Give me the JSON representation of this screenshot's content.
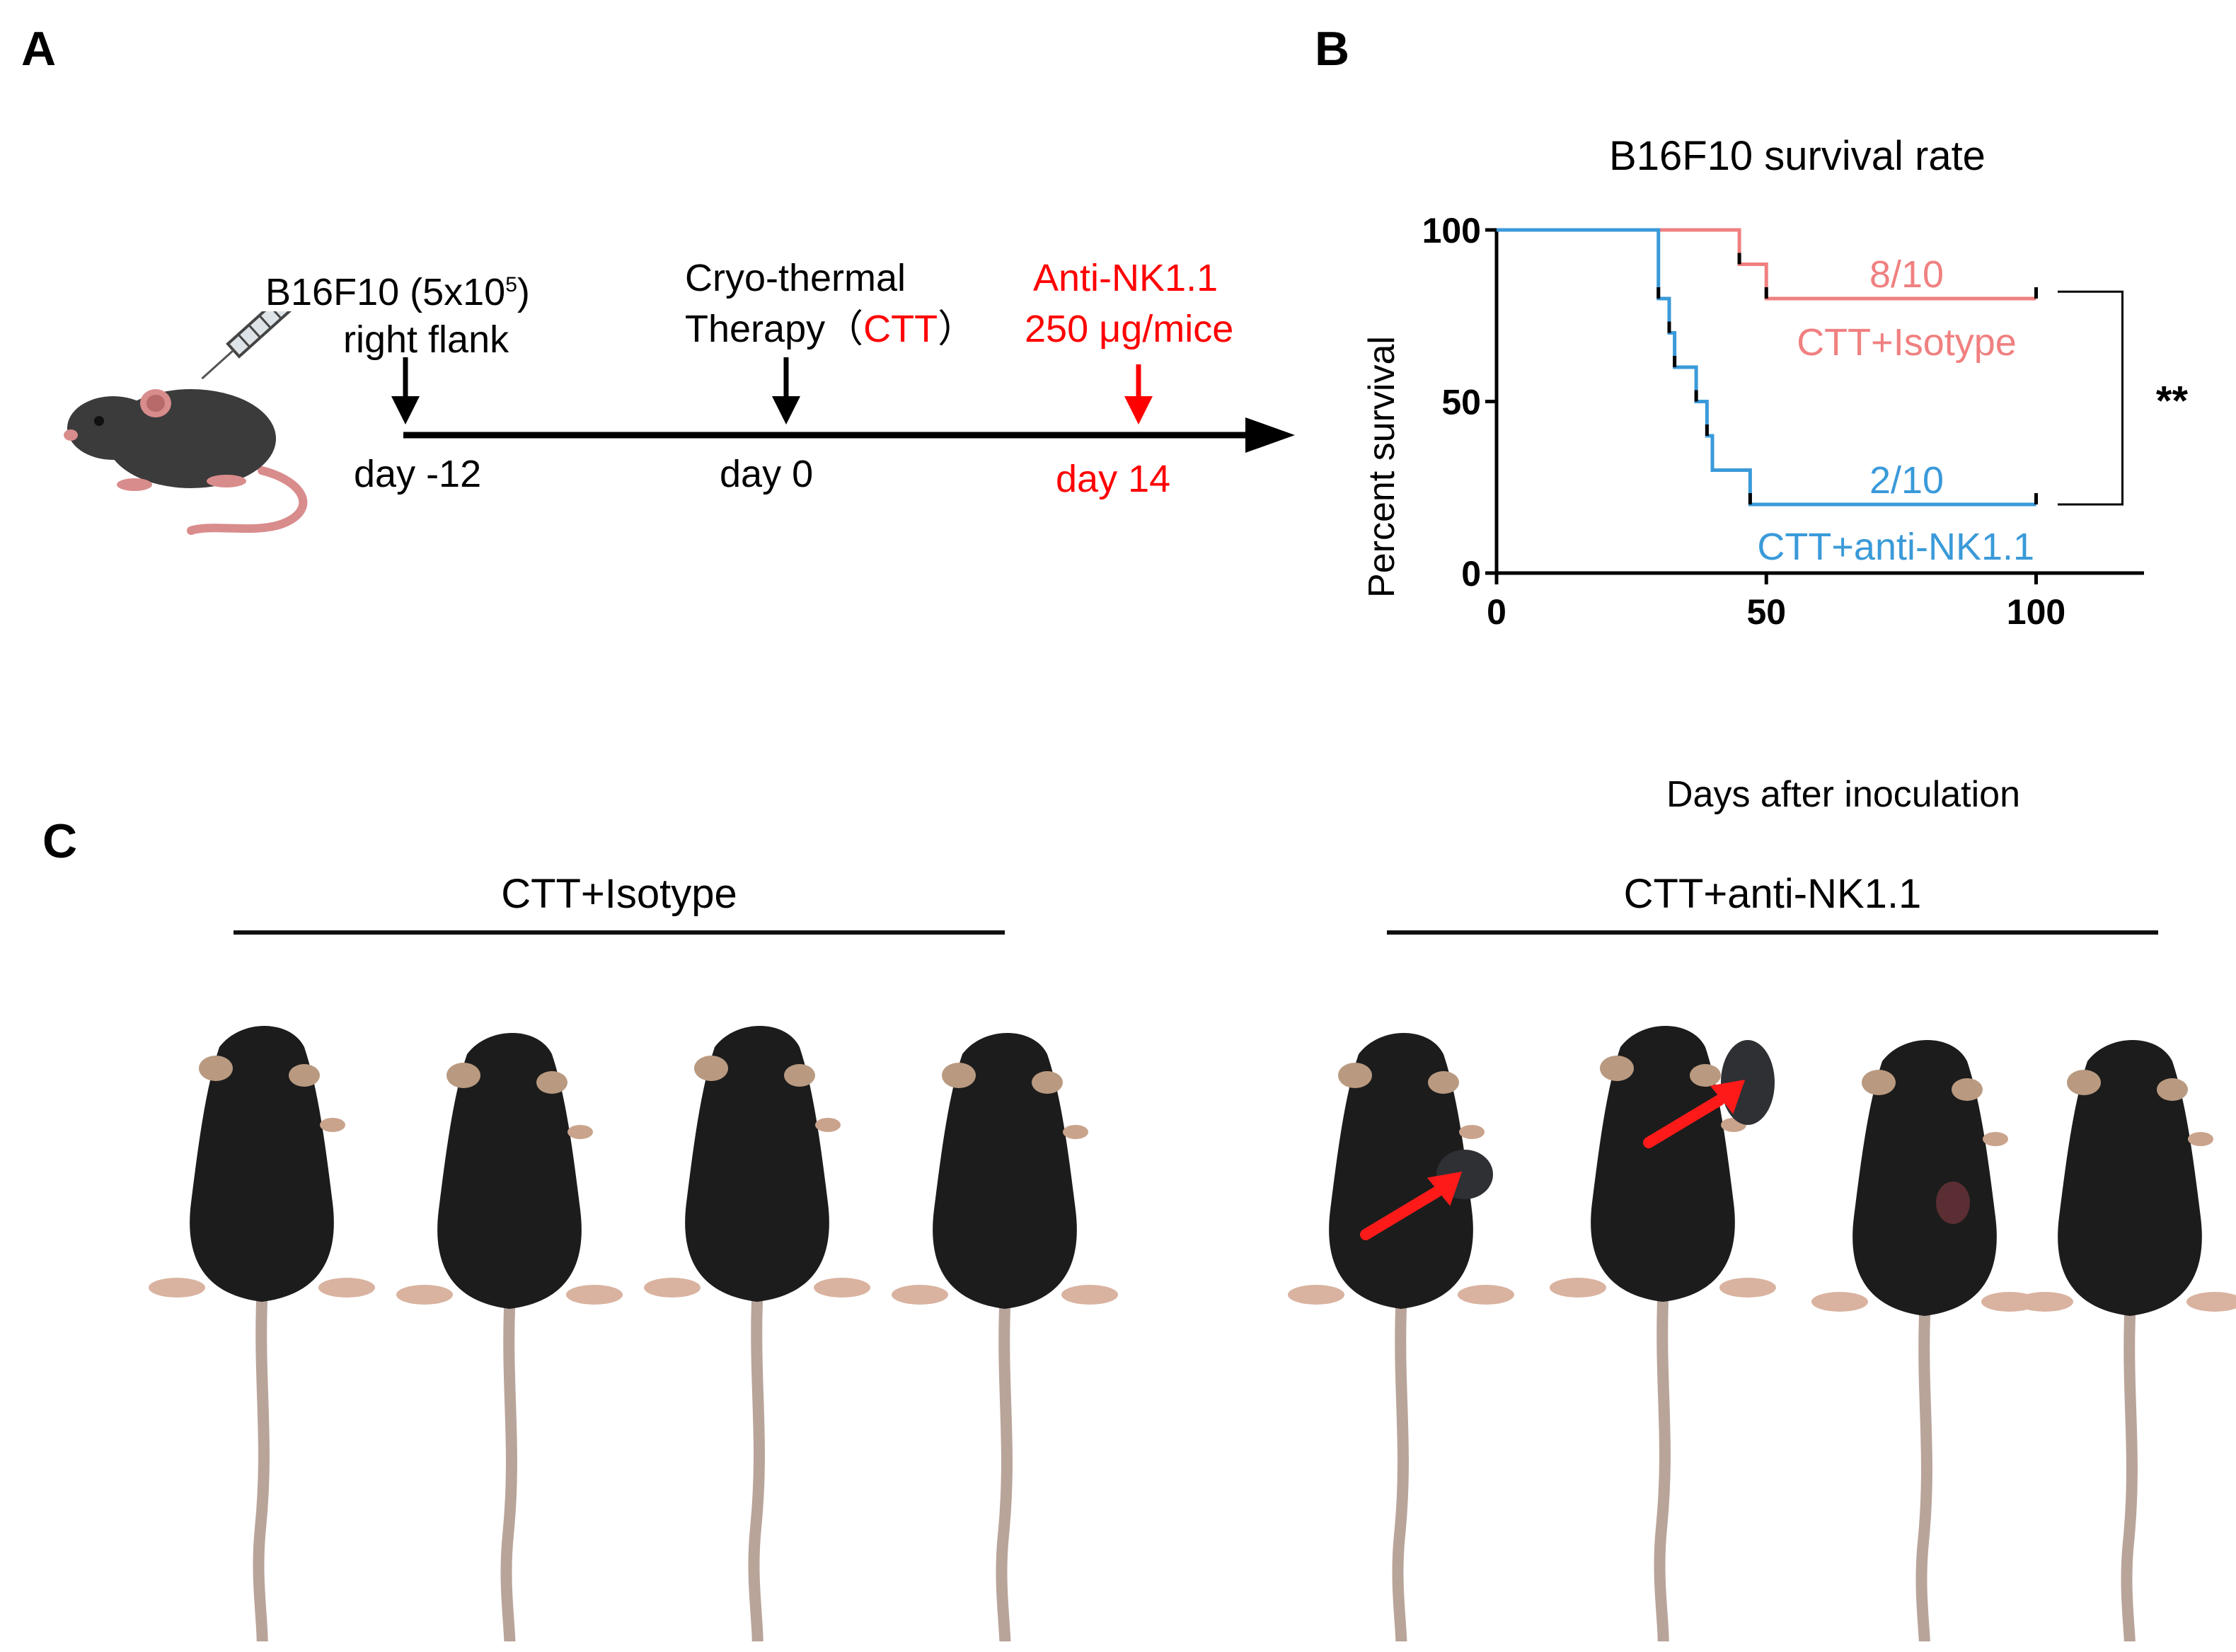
{
  "panels": {
    "a_letter": "A",
    "b_letter": "B",
    "c_letter": "C"
  },
  "timeline": {
    "inoculation": {
      "line1_pre": "B16F10 (5x10",
      "line1_sup": "5",
      "line1_post": ")",
      "line2": "right flank",
      "day": "day -12"
    },
    "therapy": {
      "line1": "Cryo-thermal",
      "line2_pre": "Therapy",
      "line2_paren_open": "（",
      "line2_red": "CTT",
      "line2_paren_close": "）",
      "day": "day 0"
    },
    "antibody": {
      "line1": "Anti-NK1.1",
      "line2": "250 μg/mice",
      "day": "day 14"
    },
    "colors": {
      "black": "#000000",
      "red": "#ff0000"
    }
  },
  "chart_data": {
    "type": "line",
    "step": true,
    "title": "B16F10 survival rate",
    "xlabel": "Days after inoculation",
    "ylabel": "Percent survival",
    "xlim": [
      0,
      120
    ],
    "ylim": [
      0,
      100
    ],
    "x_ticks": [
      0,
      50,
      100
    ],
    "y_ticks": [
      0,
      50,
      100
    ],
    "grid": false,
    "series": [
      {
        "name": "CTT+Isotype",
        "color": "#f08080",
        "fraction_label": "8/10",
        "points": [
          [
            0,
            100
          ],
          [
            45,
            100
          ],
          [
            45,
            90
          ],
          [
            50,
            90
          ],
          [
            50,
            80
          ],
          [
            100,
            80
          ]
        ],
        "censored": [
          [
            45,
            90
          ],
          [
            50,
            80
          ],
          [
            100,
            80
          ]
        ]
      },
      {
        "name": "CTT+anti-NK1.1",
        "color": "#3a9ad9",
        "fraction_label": "2/10",
        "points": [
          [
            0,
            100
          ],
          [
            30,
            100
          ],
          [
            30,
            80
          ],
          [
            32,
            80
          ],
          [
            32,
            70
          ],
          [
            33,
            70
          ],
          [
            33,
            60
          ],
          [
            37,
            60
          ],
          [
            37,
            50
          ],
          [
            39,
            50
          ],
          [
            39,
            40
          ],
          [
            40,
            40
          ],
          [
            40,
            30
          ],
          [
            47,
            30
          ],
          [
            47,
            20
          ],
          [
            100,
            20
          ]
        ],
        "censored": [
          [
            30,
            80
          ],
          [
            32,
            70
          ],
          [
            33,
            60
          ],
          [
            37,
            50
          ],
          [
            39,
            40
          ],
          [
            47,
            20
          ],
          [
            100,
            20
          ]
        ]
      }
    ],
    "significance": "**"
  },
  "photo_panel": {
    "groups": [
      {
        "label": "CTT+Isotype"
      },
      {
        "label": "CTT+anti-NK1.1"
      }
    ],
    "mice_per_group": 4
  }
}
